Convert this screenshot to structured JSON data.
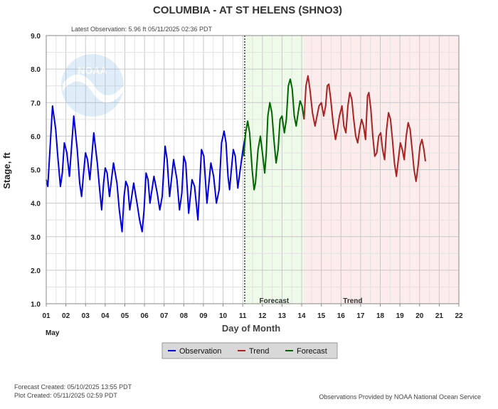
{
  "page": {
    "title": "COLUMBIA - AT ST HELENS  (SHNO3)",
    "latest_observation": "Latest Observation:  5.96 ft 05/11/2025 02:36 PDT",
    "forecast_created": "Forecast Created:  05/10/2025 13:55 PDT",
    "plot_created": "Plot Created:  05/11/2025 02:59 PDT",
    "provider_note": "Observations Provided by NOAA National Ocean Service",
    "logo_text": "NOAA"
  },
  "chart_data": {
    "type": "line",
    "title": "COLUMBIA - AT ST HELENS  (SHNO3)",
    "xlabel": "Day of Month",
    "ylabel": "Stage, ft",
    "month_label": "May",
    "xlim": [
      1,
      22
    ],
    "ylim": [
      1.0,
      9.0
    ],
    "grid": true,
    "legend_position": "bottom-center",
    "x_ticks": [
      "01",
      "02",
      "03",
      "04",
      "05",
      "06",
      "07",
      "08",
      "09",
      "10",
      "11",
      "12",
      "13",
      "14",
      "15",
      "16",
      "17",
      "18",
      "19",
      "20",
      "21",
      "22"
    ],
    "y_ticks": [
      "1.0",
      "2.0",
      "3.0",
      "4.0",
      "5.0",
      "6.0",
      "7.0",
      "8.0",
      "9.0"
    ],
    "x_units": "day of month (fractional)",
    "regions": [
      {
        "label": "Forecast",
        "start": 11.1,
        "end": 14.1,
        "color": "#eefbe9"
      },
      {
        "label": "Trend",
        "start": 14.1,
        "end": 22.0,
        "color": "#fdecec"
      }
    ],
    "series": [
      {
        "name": "Observation",
        "color": "#0000dd",
        "points": [
          [
            1.0,
            4.7
          ],
          [
            1.08,
            4.5
          ],
          [
            1.32,
            6.9
          ],
          [
            1.48,
            6.2
          ],
          [
            1.6,
            5.3
          ],
          [
            1.72,
            4.5
          ],
          [
            1.82,
            4.9
          ],
          [
            1.92,
            5.8
          ],
          [
            2.05,
            5.5
          ],
          [
            2.18,
            4.8
          ],
          [
            2.4,
            6.6
          ],
          [
            2.58,
            5.6
          ],
          [
            2.7,
            4.6
          ],
          [
            2.8,
            4.2
          ],
          [
            2.9,
            4.9
          ],
          [
            3.0,
            5.5
          ],
          [
            3.1,
            5.3
          ],
          [
            3.22,
            4.7
          ],
          [
            3.42,
            6.1
          ],
          [
            3.6,
            5.2
          ],
          [
            3.72,
            4.4
          ],
          [
            3.82,
            3.8
          ],
          [
            3.92,
            4.6
          ],
          [
            4.0,
            5.05
          ],
          [
            4.1,
            4.9
          ],
          [
            4.22,
            4.2
          ],
          [
            4.42,
            5.2
          ],
          [
            4.6,
            4.6
          ],
          [
            4.72,
            3.8
          ],
          [
            4.86,
            3.15
          ],
          [
            4.96,
            4.2
          ],
          [
            5.05,
            4.65
          ],
          [
            5.15,
            4.5
          ],
          [
            5.25,
            3.8
          ],
          [
            5.45,
            4.6
          ],
          [
            5.62,
            4.0
          ],
          [
            5.75,
            3.5
          ],
          [
            5.88,
            3.15
          ],
          [
            5.98,
            3.8
          ],
          [
            6.08,
            4.9
          ],
          [
            6.18,
            4.7
          ],
          [
            6.28,
            4.0
          ],
          [
            6.48,
            4.8
          ],
          [
            6.65,
            4.3
          ],
          [
            6.78,
            3.8
          ],
          [
            6.9,
            4.2
          ],
          [
            7.05,
            5.7
          ],
          [
            7.15,
            5.3
          ],
          [
            7.28,
            4.2
          ],
          [
            7.48,
            5.3
          ],
          [
            7.65,
            4.7
          ],
          [
            7.78,
            3.8
          ],
          [
            7.9,
            4.3
          ],
          [
            8.0,
            5.4
          ],
          [
            8.1,
            5.2
          ],
          [
            8.25,
            3.7
          ],
          [
            8.42,
            4.7
          ],
          [
            8.55,
            4.5
          ],
          [
            8.72,
            3.5
          ],
          [
            8.9,
            5.6
          ],
          [
            9.02,
            5.4
          ],
          [
            9.18,
            4.0
          ],
          [
            9.38,
            5.2
          ],
          [
            9.52,
            4.8
          ],
          [
            9.66,
            4.0
          ],
          [
            9.8,
            4.4
          ],
          [
            9.92,
            5.8
          ],
          [
            10.05,
            6.15
          ],
          [
            10.15,
            5.8
          ],
          [
            10.25,
            4.8
          ],
          [
            10.33,
            4.4
          ],
          [
            10.42,
            5.0
          ],
          [
            10.52,
            5.6
          ],
          [
            10.62,
            5.4
          ],
          [
            10.75,
            4.45
          ],
          [
            10.85,
            4.9
          ],
          [
            11.0,
            5.55
          ],
          [
            11.12,
            5.96
          ]
        ]
      },
      {
        "name": "Forecast",
        "color": "#006600",
        "points": [
          [
            11.05,
            5.4
          ],
          [
            11.15,
            6.1
          ],
          [
            11.25,
            6.45
          ],
          [
            11.35,
            6.1
          ],
          [
            11.48,
            5.0
          ],
          [
            11.58,
            4.4
          ],
          [
            11.65,
            4.6
          ],
          [
            11.78,
            5.6
          ],
          [
            11.9,
            6.0
          ],
          [
            12.02,
            5.4
          ],
          [
            12.12,
            4.9
          ],
          [
            12.2,
            5.5
          ],
          [
            12.28,
            6.6
          ],
          [
            12.38,
            7.0
          ],
          [
            12.48,
            6.7
          ],
          [
            12.6,
            5.8
          ],
          [
            12.7,
            5.2
          ],
          [
            12.8,
            5.6
          ],
          [
            12.9,
            6.5
          ],
          [
            13.0,
            6.6
          ],
          [
            13.12,
            6.1
          ],
          [
            13.22,
            6.5
          ],
          [
            13.32,
            7.5
          ],
          [
            13.42,
            7.7
          ],
          [
            13.52,
            7.4
          ],
          [
            13.62,
            6.6
          ],
          [
            13.72,
            6.3
          ],
          [
            13.82,
            6.7
          ],
          [
            13.92,
            7.05
          ],
          [
            14.02,
            6.9
          ],
          [
            14.12,
            6.5
          ]
        ]
      },
      {
        "name": "Trend",
        "color": "#aa2222",
        "points": [
          [
            14.12,
            6.5
          ],
          [
            14.22,
            7.5
          ],
          [
            14.32,
            7.8
          ],
          [
            14.42,
            7.4
          ],
          [
            14.55,
            6.7
          ],
          [
            14.68,
            6.3
          ],
          [
            14.78,
            6.6
          ],
          [
            14.88,
            6.9
          ],
          [
            15.0,
            7.0
          ],
          [
            15.12,
            6.6
          ],
          [
            15.22,
            6.9
          ],
          [
            15.3,
            7.5
          ],
          [
            15.38,
            7.55
          ],
          [
            15.48,
            7.1
          ],
          [
            15.6,
            6.4
          ],
          [
            15.72,
            5.9
          ],
          [
            15.82,
            6.2
          ],
          [
            15.92,
            6.6
          ],
          [
            16.05,
            6.9
          ],
          [
            16.15,
            6.3
          ],
          [
            16.25,
            6.1
          ],
          [
            16.35,
            6.9
          ],
          [
            16.45,
            7.3
          ],
          [
            16.55,
            7.1
          ],
          [
            16.65,
            6.5
          ],
          [
            16.75,
            6.0
          ],
          [
            16.85,
            5.8
          ],
          [
            16.95,
            6.2
          ],
          [
            17.05,
            6.5
          ],
          [
            17.15,
            6.3
          ],
          [
            17.25,
            5.9
          ],
          [
            17.35,
            7.2
          ],
          [
            17.42,
            7.3
          ],
          [
            17.52,
            6.8
          ],
          [
            17.62,
            6.0
          ],
          [
            17.72,
            5.4
          ],
          [
            17.82,
            5.5
          ],
          [
            17.92,
            6.0
          ],
          [
            18.02,
            6.1
          ],
          [
            18.12,
            5.6
          ],
          [
            18.22,
            5.3
          ],
          [
            18.32,
            6.2
          ],
          [
            18.42,
            6.7
          ],
          [
            18.52,
            6.5
          ],
          [
            18.62,
            5.9
          ],
          [
            18.72,
            5.2
          ],
          [
            18.82,
            4.8
          ],
          [
            18.92,
            5.3
          ],
          [
            19.02,
            5.8
          ],
          [
            19.12,
            5.6
          ],
          [
            19.22,
            5.3
          ],
          [
            19.32,
            6.0
          ],
          [
            19.42,
            6.4
          ],
          [
            19.52,
            6.2
          ],
          [
            19.62,
            5.6
          ],
          [
            19.72,
            5.0
          ],
          [
            19.82,
            4.65
          ],
          [
            19.92,
            5.1
          ],
          [
            20.02,
            5.7
          ],
          [
            20.12,
            5.9
          ],
          [
            20.22,
            5.6
          ],
          [
            20.3,
            5.25
          ]
        ]
      }
    ]
  },
  "legend": {
    "items": [
      {
        "label": "Observation",
        "color": "#0000dd"
      },
      {
        "label": "Trend",
        "color": "#aa2222"
      },
      {
        "label": "Forecast",
        "color": "#006600"
      }
    ]
  }
}
